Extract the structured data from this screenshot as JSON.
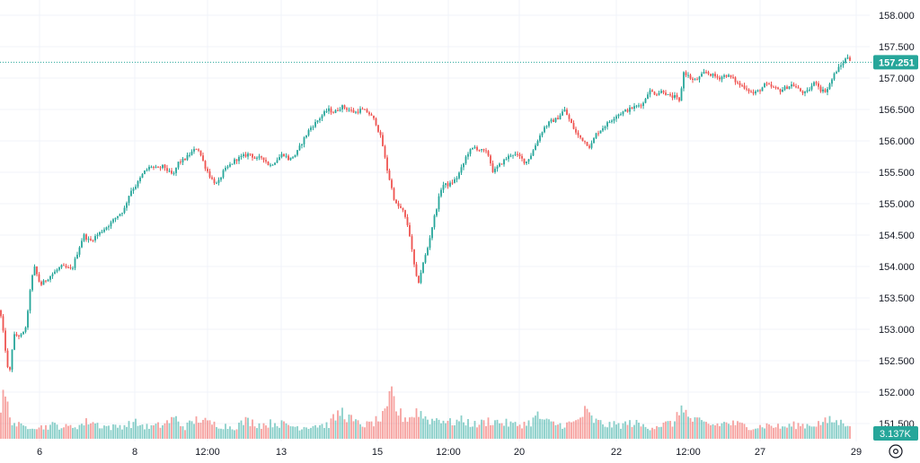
{
  "chart_data": {
    "type": "candlestick",
    "instrument_timeframe": "1h (approx.)",
    "y_axis": {
      "side": "right",
      "ylim": [
        151.35,
        158.25
      ],
      "ticks": [
        "151.500",
        "152.000",
        "152.500",
        "153.000",
        "153.500",
        "154.000",
        "154.500",
        "155.000",
        "155.500",
        "156.000",
        "156.500",
        "157.000",
        "157.500",
        "158.000"
      ]
    },
    "x_axis": {
      "tick_labels": [
        "6",
        "8",
        "12:00",
        "13",
        "15",
        "12:00",
        "20",
        "22",
        "12:00",
        "27",
        "29"
      ]
    },
    "last_price": {
      "label": "157.251",
      "value": 157.251
    },
    "volume_badge": "3.137K",
    "grid": true,
    "legend": "none",
    "colors": {
      "up": "#26a69a",
      "down": "#ef5350",
      "price_line": "#26a69a",
      "grid": "#f0f3fa",
      "axis_text": "#131722"
    },
    "close_path": [
      [
        0,
        153.3
      ],
      [
        5,
        152.8
      ],
      [
        10,
        152.2
      ],
      [
        15,
        152.9
      ],
      [
        25,
        152.9
      ],
      [
        30,
        153.1
      ],
      [
        33,
        153.6
      ],
      [
        38,
        154.0
      ],
      [
        45,
        153.7
      ],
      [
        52,
        153.8
      ],
      [
        60,
        153.9
      ],
      [
        68,
        154.0
      ],
      [
        80,
        153.95
      ],
      [
        88,
        154.3
      ],
      [
        93,
        154.5
      ],
      [
        100,
        154.4
      ],
      [
        108,
        154.5
      ],
      [
        116,
        154.6
      ],
      [
        124,
        154.7
      ],
      [
        130,
        154.8
      ],
      [
        138,
        154.9
      ],
      [
        145,
        155.2
      ],
      [
        152,
        155.3
      ],
      [
        160,
        155.5
      ],
      [
        168,
        155.6
      ],
      [
        175,
        155.55
      ],
      [
        182,
        155.6
      ],
      [
        188,
        155.5
      ],
      [
        193,
        155.45
      ],
      [
        198,
        155.65
      ],
      [
        205,
        155.7
      ],
      [
        212,
        155.8
      ],
      [
        220,
        155.9
      ],
      [
        228,
        155.6
      ],
      [
        235,
        155.4
      ],
      [
        242,
        155.3
      ],
      [
        248,
        155.5
      ],
      [
        255,
        155.6
      ],
      [
        262,
        155.7
      ],
      [
        270,
        155.75
      ],
      [
        278,
        155.8
      ],
      [
        285,
        155.7
      ],
      [
        292,
        155.75
      ],
      [
        300,
        155.6
      ],
      [
        308,
        155.7
      ],
      [
        315,
        155.8
      ],
      [
        322,
        155.7
      ],
      [
        330,
        155.8
      ],
      [
        337,
        156.0
      ],
      [
        345,
        156.2
      ],
      [
        352,
        156.3
      ],
      [
        358,
        156.4
      ],
      [
        365,
        156.5
      ],
      [
        372,
        156.45
      ],
      [
        380,
        156.55
      ],
      [
        388,
        156.5
      ],
      [
        395,
        156.45
      ],
      [
        402,
        156.5
      ],
      [
        410,
        156.45
      ],
      [
        418,
        156.3
      ],
      [
        425,
        156.0
      ],
      [
        430,
        155.6
      ],
      [
        435,
        155.3
      ],
      [
        440,
        155.0
      ],
      [
        448,
        154.9
      ],
      [
        455,
        154.6
      ],
      [
        460,
        154.1
      ],
      [
        465,
        153.7
      ],
      [
        470,
        154.0
      ],
      [
        476,
        154.3
      ],
      [
        482,
        154.7
      ],
      [
        487,
        155.0
      ],
      [
        492,
        155.3
      ],
      [
        500,
        155.3
      ],
      [
        508,
        155.4
      ],
      [
        515,
        155.6
      ],
      [
        520,
        155.8
      ],
      [
        528,
        155.9
      ],
      [
        535,
        155.85
      ],
      [
        543,
        155.8
      ],
      [
        549,
        155.5
      ],
      [
        555,
        155.6
      ],
      [
        562,
        155.7
      ],
      [
        570,
        155.8
      ],
      [
        578,
        155.75
      ],
      [
        585,
        155.65
      ],
      [
        592,
        155.8
      ],
      [
        598,
        156.0
      ],
      [
        605,
        156.2
      ],
      [
        612,
        156.3
      ],
      [
        620,
        156.35
      ],
      [
        628,
        156.5
      ],
      [
        635,
        156.3
      ],
      [
        642,
        156.1
      ],
      [
        650,
        156.0
      ],
      [
        657,
        155.9
      ],
      [
        663,
        156.1
      ],
      [
        670,
        156.2
      ],
      [
        678,
        156.3
      ],
      [
        685,
        156.4
      ],
      [
        692,
        156.45
      ],
      [
        700,
        156.5
      ],
      [
        708,
        156.55
      ],
      [
        716,
        156.6
      ],
      [
        722,
        156.8
      ],
      [
        730,
        156.75
      ],
      [
        738,
        156.8
      ],
      [
        745,
        156.7
      ],
      [
        752,
        156.7
      ],
      [
        757,
        156.6
      ],
      [
        760,
        157.1
      ],
      [
        765,
        157.05
      ],
      [
        772,
        156.95
      ],
      [
        778,
        157.0
      ],
      [
        785,
        157.1
      ],
      [
        792,
        157.05
      ],
      [
        800,
        157.0
      ],
      [
        808,
        157.05
      ],
      [
        815,
        157.0
      ],
      [
        822,
        156.9
      ],
      [
        830,
        156.85
      ],
      [
        838,
        156.75
      ],
      [
        845,
        156.8
      ],
      [
        852,
        156.9
      ],
      [
        860,
        156.85
      ],
      [
        868,
        156.8
      ],
      [
        875,
        156.85
      ],
      [
        882,
        156.9
      ],
      [
        890,
        156.8
      ],
      [
        897,
        156.75
      ],
      [
        902,
        156.85
      ],
      [
        908,
        156.95
      ],
      [
        914,
        156.8
      ],
      [
        920,
        156.8
      ],
      [
        925,
        156.95
      ],
      [
        930,
        157.1
      ],
      [
        936,
        157.2
      ],
      [
        941,
        157.3
      ],
      [
        944,
        157.35
      ],
      [
        948,
        157.25
      ]
    ],
    "volume_path": [
      [
        0,
        0.55
      ],
      [
        5,
        1.0
      ],
      [
        10,
        0.55
      ],
      [
        15,
        0.35
      ],
      [
        25,
        0.25
      ],
      [
        35,
        0.3
      ],
      [
        45,
        0.25
      ],
      [
        60,
        0.3
      ],
      [
        75,
        0.25
      ],
      [
        90,
        0.3
      ],
      [
        100,
        0.4
      ],
      [
        110,
        0.3
      ],
      [
        125,
        0.25
      ],
      [
        140,
        0.3
      ],
      [
        150,
        0.35
      ],
      [
        165,
        0.25
      ],
      [
        180,
        0.3
      ],
      [
        195,
        0.45
      ],
      [
        205,
        0.25
      ],
      [
        222,
        0.45
      ],
      [
        230,
        0.35
      ],
      [
        245,
        0.3
      ],
      [
        260,
        0.25
      ],
      [
        275,
        0.4
      ],
      [
        290,
        0.3
      ],
      [
        305,
        0.35
      ],
      [
        320,
        0.3
      ],
      [
        335,
        0.25
      ],
      [
        350,
        0.3
      ],
      [
        365,
        0.3
      ],
      [
        380,
        0.6
      ],
      [
        395,
        0.35
      ],
      [
        410,
        0.3
      ],
      [
        425,
        0.45
      ],
      [
        430,
        0.55
      ],
      [
        436,
        1.0
      ],
      [
        442,
        0.6
      ],
      [
        450,
        0.45
      ],
      [
        460,
        0.5
      ],
      [
        465,
        0.65
      ],
      [
        470,
        0.5
      ],
      [
        480,
        0.4
      ],
      [
        490,
        0.45
      ],
      [
        500,
        0.35
      ],
      [
        515,
        0.4
      ],
      [
        530,
        0.3
      ],
      [
        545,
        0.4
      ],
      [
        560,
        0.35
      ],
      [
        575,
        0.3
      ],
      [
        590,
        0.35
      ],
      [
        598,
        0.5
      ],
      [
        610,
        0.35
      ],
      [
        625,
        0.3
      ],
      [
        640,
        0.35
      ],
      [
        652,
        0.6
      ],
      [
        660,
        0.4
      ],
      [
        675,
        0.3
      ],
      [
        690,
        0.3
      ],
      [
        705,
        0.35
      ],
      [
        720,
        0.25
      ],
      [
        735,
        0.3
      ],
      [
        750,
        0.35
      ],
      [
        755,
        0.5
      ],
      [
        760,
        0.85
      ],
      [
        765,
        0.45
      ],
      [
        780,
        0.35
      ],
      [
        795,
        0.3
      ],
      [
        810,
        0.35
      ],
      [
        825,
        0.3
      ],
      [
        840,
        0.25
      ],
      [
        855,
        0.3
      ],
      [
        870,
        0.25
      ],
      [
        885,
        0.3
      ],
      [
        900,
        0.3
      ],
      [
        915,
        0.35
      ],
      [
        925,
        0.4
      ],
      [
        935,
        0.35
      ],
      [
        948,
        0.35
      ]
    ]
  },
  "icons": {
    "settings": "gear-icon"
  }
}
